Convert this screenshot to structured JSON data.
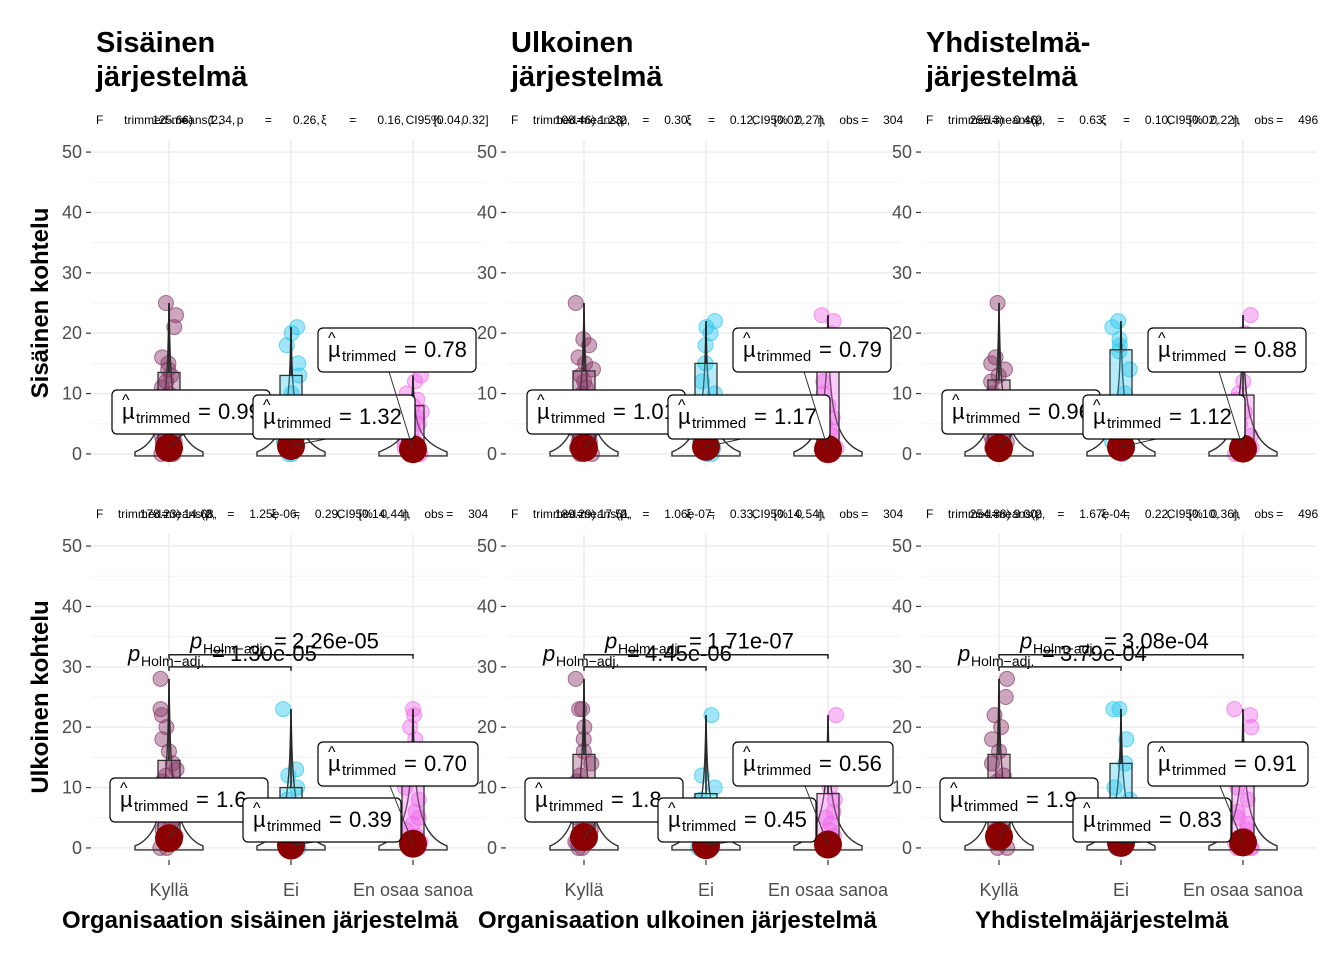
{
  "columns": [
    {
      "title": [
        "Sisäinen",
        "järjestelmä"
      ],
      "xlabel": "Organisaation sisäinen järjestelmä"
    },
    {
      "title": [
        "Ulkoinen",
        "järjestelmä"
      ],
      "xlabel": "Organisaation ulkoinen järjestelmä"
    },
    {
      "title": [
        "Yhdistelmä-",
        "järjestelmä"
      ],
      "xlabel": "Yhdistelmäjärjestelmä"
    }
  ],
  "rows": [
    {
      "ylabel": "Sisäinen kohtelu"
    },
    {
      "ylabel": "Ulkoinen kohtelu"
    }
  ],
  "colors": {
    "group1": "#8B3A6B",
    "group2": "#2EC8F0",
    "group3": "#F06EEA",
    "mean_point": "#8B0000",
    "grid": "#EBEBEB",
    "text": "#222222",
    "axis_text": "#4D4D4D"
  },
  "chart_data": [
    {
      "type": "scatter",
      "panel": "row1-col1",
      "subtitle": "F trimmed-means(2, 125.66) = 1.34, p = 0.26, ξ = 0.16, CI95% [0.04, 0.32]",
      "categories": [
        "Kyllä",
        "Ei",
        "En osaa sanoa"
      ],
      "yticks": [
        0,
        10,
        20,
        30,
        40,
        50
      ],
      "ylim": [
        -2,
        52
      ],
      "means": [
        0.99,
        1.32,
        0.78
      ],
      "mean_labels": [
        "0.99",
        "1.32",
        "0.78"
      ],
      "series": [
        {
          "values": [
            0,
            0,
            1,
            1,
            2,
            2,
            3,
            4,
            5,
            6,
            7,
            8,
            9,
            10,
            11,
            12,
            13,
            14,
            15,
            16,
            21,
            23,
            25
          ]
        },
        {
          "values": [
            0,
            0,
            1,
            1,
            2,
            3,
            3,
            4,
            5,
            6,
            8,
            10,
            13,
            15,
            18,
            20,
            21
          ]
        },
        {
          "values": [
            0,
            0,
            0,
            1,
            1,
            2,
            2,
            3,
            4,
            5,
            6,
            7,
            8,
            9,
            10,
            12,
            13
          ]
        }
      ],
      "pairwise": []
    },
    {
      "type": "scatter",
      "panel": "row1-col2",
      "subtitle": "F trimmed-means(2, 108.46) = 1.23, p = 0.30, ξ = 0.12, CI95% [0.02, 0.27], n obs = 304",
      "categories": [
        "Kyllä",
        "Ei",
        "En osaa sanoa"
      ],
      "yticks": [
        0,
        10,
        20,
        30,
        40,
        50
      ],
      "ylim": [
        -2,
        52
      ],
      "means": [
        1.01,
        1.17,
        0.79
      ],
      "mean_labels": [
        "1.01",
        "1.17",
        "0.79"
      ],
      "series": [
        {
          "values": [
            0,
            0,
            1,
            1,
            2,
            2,
            3,
            4,
            5,
            6,
            7,
            8,
            10,
            11,
            12,
            13,
            14,
            15,
            16,
            18,
            19,
            25
          ]
        },
        {
          "values": [
            0,
            0,
            1,
            2,
            2,
            3,
            4,
            5,
            6,
            8,
            10,
            12,
            15,
            18,
            20,
            21,
            22
          ]
        },
        {
          "values": [
            0,
            0,
            0,
            1,
            1,
            2,
            3,
            4,
            5,
            6,
            8,
            10,
            12,
            15,
            18,
            20,
            22,
            23
          ]
        }
      ],
      "pairwise": []
    },
    {
      "type": "scatter",
      "panel": "row1-col3",
      "subtitle": "F trimmed-means(2, 255.3) = 0.46, p = 0.63, ξ = 0.10, CI95% [0.02, 0.22], n obs = 496",
      "categories": [
        "Kyllä",
        "Ei",
        "En osaa sanoa"
      ],
      "yticks": [
        0,
        10,
        20,
        30,
        40,
        50
      ],
      "ylim": [
        -2,
        52
      ],
      "means": [
        0.96,
        1.12,
        0.88
      ],
      "mean_labels": [
        "0.96",
        "1.12",
        "0.88"
      ],
      "series": [
        {
          "values": [
            0,
            0,
            1,
            1,
            2,
            2,
            3,
            4,
            5,
            6,
            7,
            8,
            9,
            10,
            12,
            13,
            14,
            15,
            16,
            25
          ]
        },
        {
          "values": [
            0,
            0,
            1,
            2,
            3,
            4,
            5,
            6,
            8,
            10,
            14,
            17,
            18,
            19,
            21,
            22
          ]
        },
        {
          "values": [
            0,
            0,
            0,
            1,
            1,
            2,
            3,
            4,
            5,
            6,
            7,
            8,
            9,
            10,
            12,
            15,
            20,
            23
          ]
        }
      ],
      "pairwise": []
    },
    {
      "type": "scatter",
      "panel": "row2-col1",
      "subtitle": "F trimmed-means(2, 178.23) = 14.68, p = 1.25e-06, ξ = 0.29, CI95% [0.14, 0.44], n obs = 304",
      "categories": [
        "Kyllä",
        "Ei",
        "En osaa sanoa"
      ],
      "yticks": [
        0,
        10,
        20,
        30,
        40,
        50
      ],
      "ylim": [
        -2,
        52
      ],
      "means": [
        1.6,
        0.39,
        0.7
      ],
      "mean_labels": [
        "1.6",
        "0.39",
        "0.70"
      ],
      "series": [
        {
          "values": [
            0,
            0,
            1,
            1,
            2,
            2,
            3,
            4,
            5,
            6,
            7,
            8,
            9,
            10,
            11,
            12,
            13,
            14,
            16,
            18,
            20,
            22,
            23,
            28
          ]
        },
        {
          "values": [
            0,
            0,
            0,
            1,
            1,
            2,
            3,
            5,
            8,
            10,
            12,
            13,
            23
          ]
        },
        {
          "values": [
            0,
            0,
            0,
            1,
            1,
            2,
            3,
            4,
            5,
            6,
            8,
            10,
            12,
            15,
            18,
            20,
            22,
            23
          ]
        }
      ],
      "pairwise": [
        {
          "pair": [
            0,
            1
          ],
          "level": 30.0,
          "label": "1.30e-05"
        },
        {
          "pair": [
            0,
            2
          ],
          "level": 32.0,
          "label": "2.26e-05"
        }
      ]
    },
    {
      "type": "scatter",
      "panel": "row2-col2",
      "subtitle": "F trimmed-means(2, 189.29) = 17.51, p = 1.06e-07, ξ = 0.33, CI95% [0.14, 0.54], n obs = 304",
      "categories": [
        "Kyllä",
        "Ei",
        "En osaa sanoa"
      ],
      "yticks": [
        0,
        10,
        20,
        30,
        40,
        50
      ],
      "ylim": [
        -2,
        52
      ],
      "means": [
        1.8,
        0.45,
        0.56
      ],
      "mean_labels": [
        "1.8",
        "0.45",
        "0.56"
      ],
      "series": [
        {
          "values": [
            0,
            0,
            1,
            1,
            2,
            3,
            4,
            5,
            6,
            7,
            8,
            9,
            10,
            11,
            12,
            14,
            16,
            18,
            20,
            23,
            23,
            28
          ]
        },
        {
          "values": [
            0,
            0,
            0,
            1,
            2,
            3,
            5,
            8,
            10,
            12,
            22
          ]
        },
        {
          "values": [
            0,
            0,
            0,
            1,
            1,
            2,
            3,
            4,
            5,
            6,
            8,
            10,
            12,
            15,
            22
          ]
        }
      ],
      "pairwise": [
        {
          "pair": [
            0,
            1
          ],
          "level": 30.0,
          "label": "4.45e-06"
        },
        {
          "pair": [
            0,
            2
          ],
          "level": 32.0,
          "label": "1.71e-07"
        }
      ]
    },
    {
      "type": "scatter",
      "panel": "row2-col3",
      "subtitle": "F trimmed-means(2, 254.88) = 9.00, p = 1.67e-04, ξ = 0.22, CI95% [0.10, 0.36], n obs = 496",
      "categories": [
        "Kyllä",
        "Ei",
        "En osaa sanoa"
      ],
      "yticks": [
        0,
        10,
        20,
        30,
        40,
        50
      ],
      "ylim": [
        -2,
        52
      ],
      "means": [
        1.9,
        0.83,
        0.91
      ],
      "mean_labels": [
        "1.9",
        "0.83",
        "0.91"
      ],
      "series": [
        {
          "values": [
            0,
            0,
            1,
            1,
            2,
            3,
            4,
            5,
            6,
            7,
            8,
            9,
            10,
            11,
            12,
            14,
            16,
            18,
            20,
            22,
            25,
            28
          ]
        },
        {
          "values": [
            0,
            0,
            0,
            1,
            2,
            3,
            5,
            8,
            10,
            14,
            18,
            23,
            23
          ]
        },
        {
          "values": [
            0,
            0,
            0,
            1,
            1,
            2,
            3,
            4,
            5,
            6,
            8,
            10,
            12,
            15,
            20,
            22,
            23
          ]
        }
      ],
      "pairwise": [
        {
          "pair": [
            0,
            1
          ],
          "level": 30.0,
          "label": "3.79e-04"
        },
        {
          "pair": [
            0,
            2
          ],
          "level": 32.0,
          "label": "3.08e-04"
        }
      ]
    }
  ]
}
